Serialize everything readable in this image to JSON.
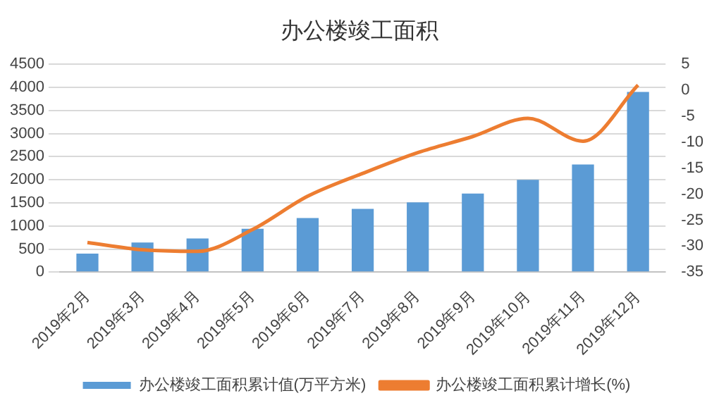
{
  "chart_data": {
    "type": "bar",
    "title": "办公楼竣工面积",
    "categories": [
      "2019年2月",
      "2019年3月",
      "2019年4月",
      "2019年5月",
      "2019年6月",
      "2019年7月",
      "2019年8月",
      "2019年9月",
      "2019年10月",
      "2019年11月",
      "2019年12月"
    ],
    "series": [
      {
        "name": "办公楼竣工面积累计值(万平方米)",
        "color": "#5b9bd5",
        "values": [
          400,
          640,
          730,
          940,
          1170,
          1370,
          1510,
          1700,
          2000,
          2330,
          3900
        ]
      },
      {
        "name": "办公楼竣工面积累计增长(%)",
        "type": "line",
        "axis": "y2",
        "color": "#ed7d31",
        "values": [
          -29.3,
          -30.7,
          -31,
          -26.8,
          -20.4,
          -16,
          -12,
          -8.9,
          -5.4,
          -9.8,
          1
        ]
      }
    ],
    "ylim": [
      0,
      4500
    ],
    "yticks": [
      0,
      500,
      1000,
      1500,
      2000,
      2500,
      3000,
      3500,
      4000,
      4500
    ],
    "y2lim": [
      -35,
      5
    ],
    "y2ticks": [
      -35,
      -30,
      -25,
      -20,
      -15,
      -10,
      -5,
      0,
      5
    ],
    "grid": "y",
    "legend": "bottom",
    "marker": "none",
    "line_style": "solid"
  }
}
